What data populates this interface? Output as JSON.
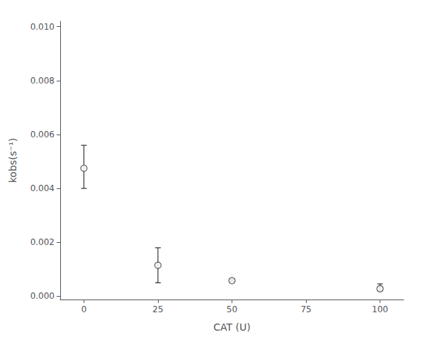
{
  "chart_data": {
    "type": "scatter",
    "xlabel": "CAT (U)",
    "ylabel": "kobs(s⁻¹)",
    "x": [
      0,
      25,
      50,
      100
    ],
    "values": [
      0.00475,
      0.00115,
      0.00058,
      0.00028
    ],
    "yerr_upper": [
      0.00085,
      0.00065,
      4e-05,
      0.00018
    ],
    "yerr_lower": [
      0.00075,
      0.00065,
      4e-05,
      8e-05
    ],
    "xlim": [
      -8,
      108
    ],
    "ylim": [
      -0.00012,
      0.0102
    ],
    "xticks": [
      0,
      25,
      50,
      75,
      100
    ],
    "yticks": [
      {
        "value": 0.0,
        "label": "0.000"
      },
      {
        "value": 0.002,
        "label": "0.002"
      },
      {
        "value": 0.004,
        "label": "0.004"
      },
      {
        "value": 0.006,
        "label": "0.006"
      },
      {
        "value": 0.008,
        "label": "0.008"
      },
      {
        "value": 0.01,
        "label": "0.010"
      }
    ],
    "color": "#333333",
    "marker": "open circle",
    "grid": false
  }
}
